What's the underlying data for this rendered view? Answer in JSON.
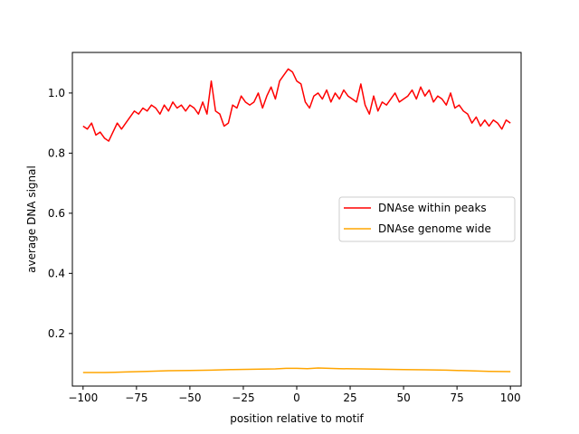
{
  "chart_data": {
    "type": "line",
    "title": "",
    "xlabel": "position relative to motif",
    "ylabel": "average DNA signal",
    "xlim": [
      -105,
      105
    ],
    "ylim": [
      0.025,
      1.135
    ],
    "xticks": [
      -100,
      -75,
      -50,
      -25,
      0,
      25,
      50,
      75,
      100
    ],
    "xtick_labels": [
      "−100",
      "−75",
      "−50",
      "−25",
      "0",
      "25",
      "50",
      "75",
      "100"
    ],
    "yticks": [
      0.2,
      0.4,
      0.6,
      0.8,
      1.0
    ],
    "ytick_labels": [
      "0.2",
      "0.4",
      "0.6",
      "0.8",
      "1.0"
    ],
    "grid": false,
    "legend_position": "center-right",
    "series": [
      {
        "name": "DNAse within peaks",
        "color": "#ff0000",
        "x": [
          -100,
          -98,
          -96,
          -94,
          -92,
          -90,
          -88,
          -86,
          -84,
          -82,
          -80,
          -78,
          -76,
          -74,
          -72,
          -70,
          -68,
          -66,
          -64,
          -62,
          -60,
          -58,
          -56,
          -54,
          -52,
          -50,
          -48,
          -46,
          -44,
          -42,
          -40,
          -38,
          -36,
          -34,
          -32,
          -30,
          -28,
          -26,
          -24,
          -22,
          -20,
          -18,
          -16,
          -14,
          -12,
          -10,
          -8,
          -6,
          -4,
          -2,
          0,
          2,
          4,
          6,
          8,
          10,
          12,
          14,
          16,
          18,
          20,
          22,
          24,
          26,
          28,
          30,
          32,
          34,
          36,
          38,
          40,
          42,
          44,
          46,
          48,
          50,
          52,
          54,
          56,
          58,
          60,
          62,
          64,
          66,
          68,
          70,
          72,
          74,
          76,
          78,
          80,
          82,
          84,
          86,
          88,
          90,
          92,
          94,
          96,
          98,
          100
        ],
        "values": [
          0.89,
          0.88,
          0.9,
          0.86,
          0.87,
          0.85,
          0.84,
          0.87,
          0.9,
          0.88,
          0.9,
          0.92,
          0.94,
          0.93,
          0.95,
          0.94,
          0.96,
          0.95,
          0.93,
          0.96,
          0.94,
          0.97,
          0.95,
          0.96,
          0.94,
          0.96,
          0.95,
          0.93,
          0.97,
          0.93,
          1.04,
          0.94,
          0.93,
          0.89,
          0.9,
          0.96,
          0.95,
          0.99,
          0.97,
          0.96,
          0.97,
          1.0,
          0.95,
          0.99,
          1.02,
          0.98,
          1.04,
          1.06,
          1.08,
          1.07,
          1.04,
          1.03,
          0.97,
          0.95,
          0.99,
          1.0,
          0.98,
          1.01,
          0.97,
          1.0,
          0.98,
          1.01,
          0.99,
          0.98,
          0.97,
          1.03,
          0.96,
          0.93,
          0.99,
          0.94,
          0.97,
          0.96,
          0.98,
          1.0,
          0.97,
          0.98,
          0.99,
          1.01,
          0.98,
          1.02,
          0.99,
          1.01,
          0.97,
          0.99,
          0.98,
          0.96,
          1.0,
          0.95,
          0.96,
          0.94,
          0.93,
          0.9,
          0.92,
          0.89,
          0.91,
          0.89,
          0.91,
          0.9,
          0.88,
          0.91,
          0.9
        ]
      },
      {
        "name": "DNAse genome wide",
        "color": "#ffa500",
        "x": [
          -100,
          -90,
          -80,
          -70,
          -60,
          -50,
          -40,
          -30,
          -20,
          -10,
          -5,
          0,
          5,
          10,
          15,
          20,
          30,
          40,
          50,
          60,
          70,
          80,
          90,
          100
        ],
        "values": [
          0.07,
          0.07,
          0.072,
          0.074,
          0.076,
          0.077,
          0.078,
          0.08,
          0.081,
          0.082,
          0.084,
          0.084,
          0.083,
          0.085,
          0.084,
          0.083,
          0.082,
          0.081,
          0.08,
          0.079,
          0.078,
          0.076,
          0.074,
          0.073
        ]
      }
    ]
  }
}
